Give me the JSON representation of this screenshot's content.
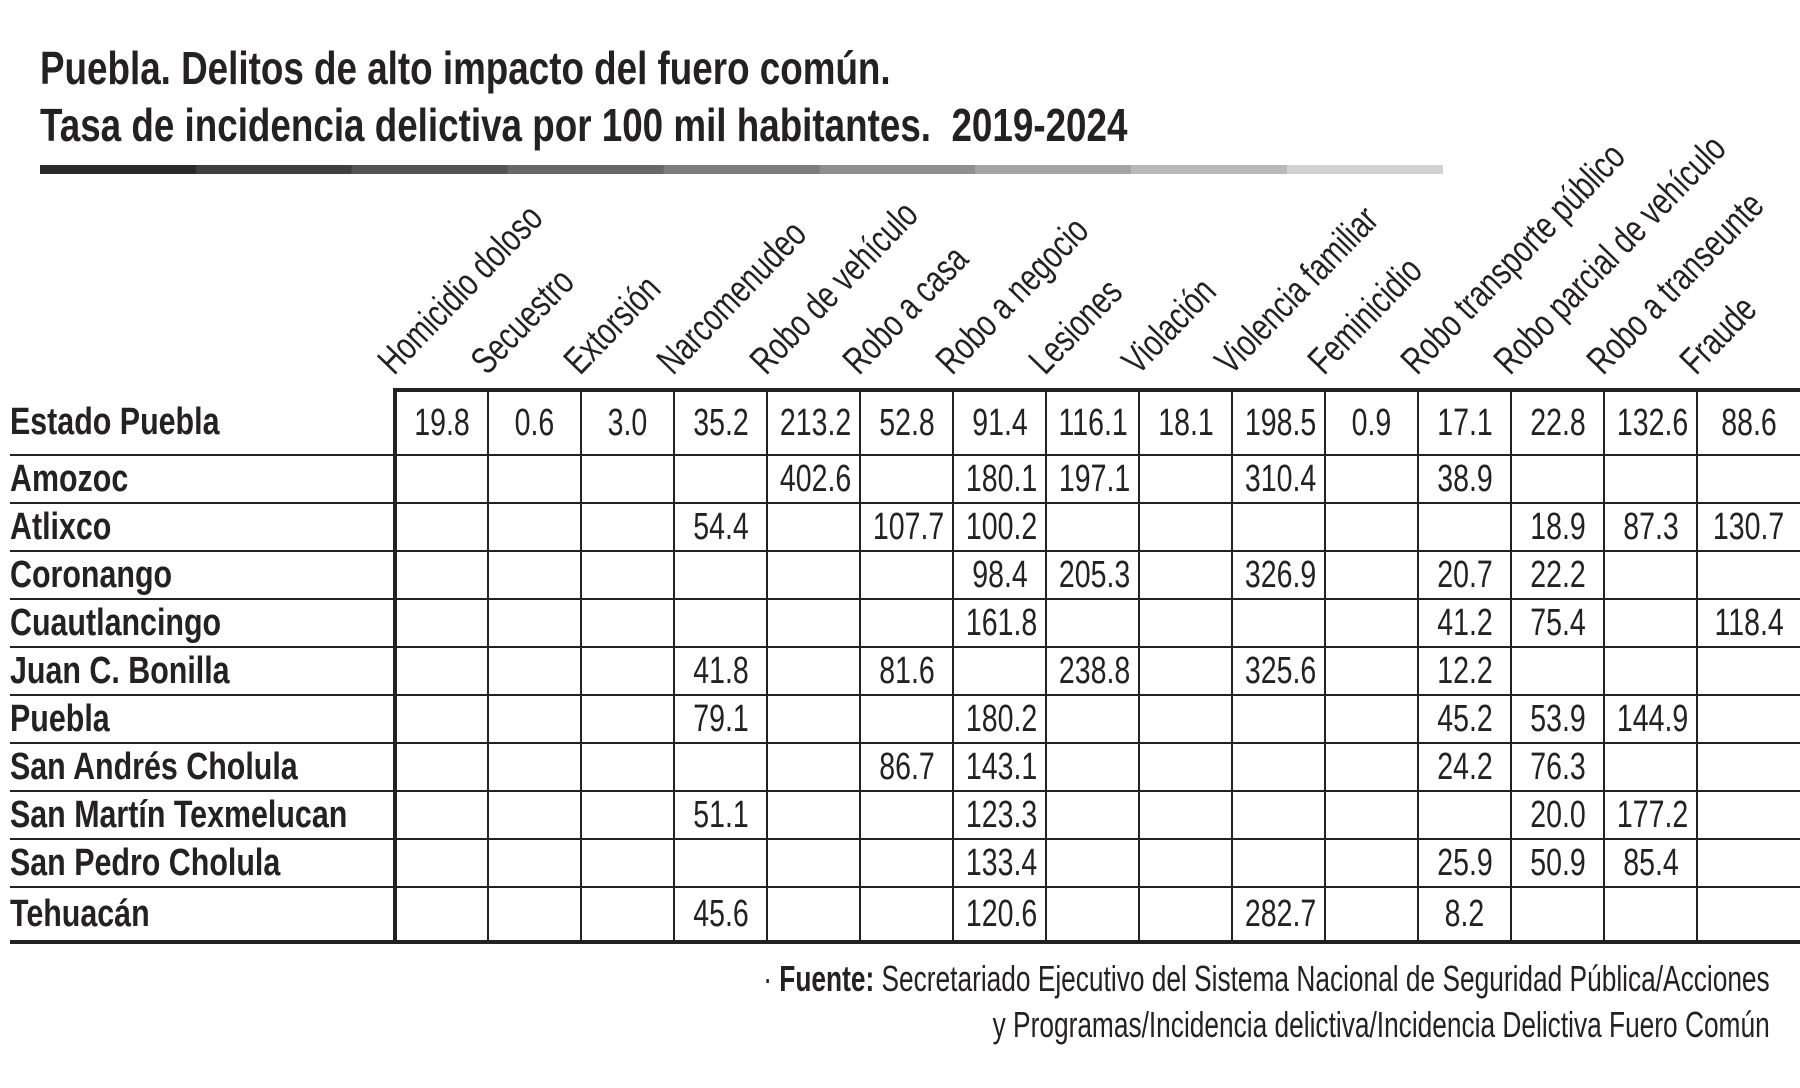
{
  "page": {
    "title_line1": "Puebla. Delitos de alto impacto del fuero común.",
    "title_line2": "Tasa de incidencia delictiva por 100 mil habitantes.  2019-2024"
  },
  "divider": {
    "start_color": "#2b2a29",
    "end_color": "#d3d2d1",
    "segments": 9
  },
  "chart_data": {
    "type": "table",
    "title": "Puebla. Delitos de alto impacto del fuero común. Tasa de incidencia delictiva por 100 mil habitantes. 2019-2024",
    "unit": "tasa por 100 mil habitantes",
    "columns": [
      "Homicidio doloso",
      "Secuestro",
      "Extorsión",
      "Narcomenudeo",
      "Robo de vehículo",
      "Robo a casa",
      "Robo a negocio",
      "Lesiones",
      "Violación",
      "Violencia familiar",
      "Feminicidio",
      "Robo transporte público",
      "Robo parcial de vehículo",
      "Robo a transeunte",
      "Fraude"
    ],
    "rows": [
      {
        "label": "Estado Puebla",
        "values": [
          "19.8",
          "0.6",
          "3.0",
          "35.2",
          "213.2",
          "52.8",
          "91.4",
          "116.1",
          "18.1",
          "198.5",
          "0.9",
          "17.1",
          "22.8",
          "132.6",
          "88.6"
        ]
      },
      {
        "label": "Amozoc",
        "values": [
          "",
          "",
          "",
          "",
          "402.6",
          "",
          "180.1",
          "197.1",
          "",
          "310.4",
          "",
          "38.9",
          "",
          "",
          ""
        ]
      },
      {
        "label": "Atlixco",
        "values": [
          "",
          "",
          "",
          "54.4",
          "",
          "107.7",
          "100.2",
          "",
          "",
          "",
          "",
          "",
          "18.9",
          "87.3",
          "130.7"
        ]
      },
      {
        "label": "Coronango",
        "values": [
          "",
          "",
          "",
          "",
          "",
          "",
          "98.4",
          "205.3",
          "",
          "326.9",
          "",
          "20.7",
          "22.2",
          "",
          ""
        ]
      },
      {
        "label": "Cuautlancingo",
        "values": [
          "",
          "",
          "",
          "",
          "",
          "",
          "161.8",
          "",
          "",
          "",
          "",
          "41.2",
          "75.4",
          "",
          "118.4"
        ]
      },
      {
        "label": "Juan C. Bonilla",
        "values": [
          "",
          "",
          "",
          "41.8",
          "",
          "81.6",
          "",
          "238.8",
          "",
          "325.6",
          "",
          "12.2",
          "",
          "",
          ""
        ]
      },
      {
        "label": "Puebla",
        "values": [
          "",
          "",
          "",
          "79.1",
          "",
          "",
          "180.2",
          "",
          "",
          "",
          "",
          "45.2",
          "53.9",
          "144.9",
          ""
        ]
      },
      {
        "label": "San Andrés Cholula",
        "values": [
          "",
          "",
          "",
          "",
          "",
          "86.7",
          "143.1",
          "",
          "",
          "",
          "",
          "24.2",
          "76.3",
          "",
          ""
        ]
      },
      {
        "label": "San Martín Texmelucan",
        "values": [
          "",
          "",
          "",
          "51.1",
          "",
          "",
          "123.3",
          "",
          "",
          "",
          "",
          "",
          "20.0",
          "177.2",
          ""
        ]
      },
      {
        "label": "San Pedro Cholula",
        "values": [
          "",
          "",
          "",
          "",
          "",
          "",
          "133.4",
          "",
          "",
          "",
          "",
          "25.9",
          "50.9",
          "85.4",
          ""
        ]
      },
      {
        "label": "Tehuacán",
        "values": [
          "",
          "",
          "",
          "45.6",
          "",
          "",
          "120.6",
          "",
          "",
          "282.7",
          "",
          "8.2",
          "",
          "",
          ""
        ]
      }
    ],
    "source": "Secretariado Ejecutivo del Sistema Nacional de Seguridad Pública/Acciones y Programas/Incidencia delictiva/Incidencia Delictiva Fuero Común"
  },
  "footer": {
    "bullet": "·",
    "source_label": "Fuente:",
    "line1_text": "Secretariado Ejecutivo del Sistema Nacional de Seguridad Pública/Acciones",
    "line2_text": "y Programas/Incidencia delictiva/Incidencia Delictiva Fuero Común"
  }
}
